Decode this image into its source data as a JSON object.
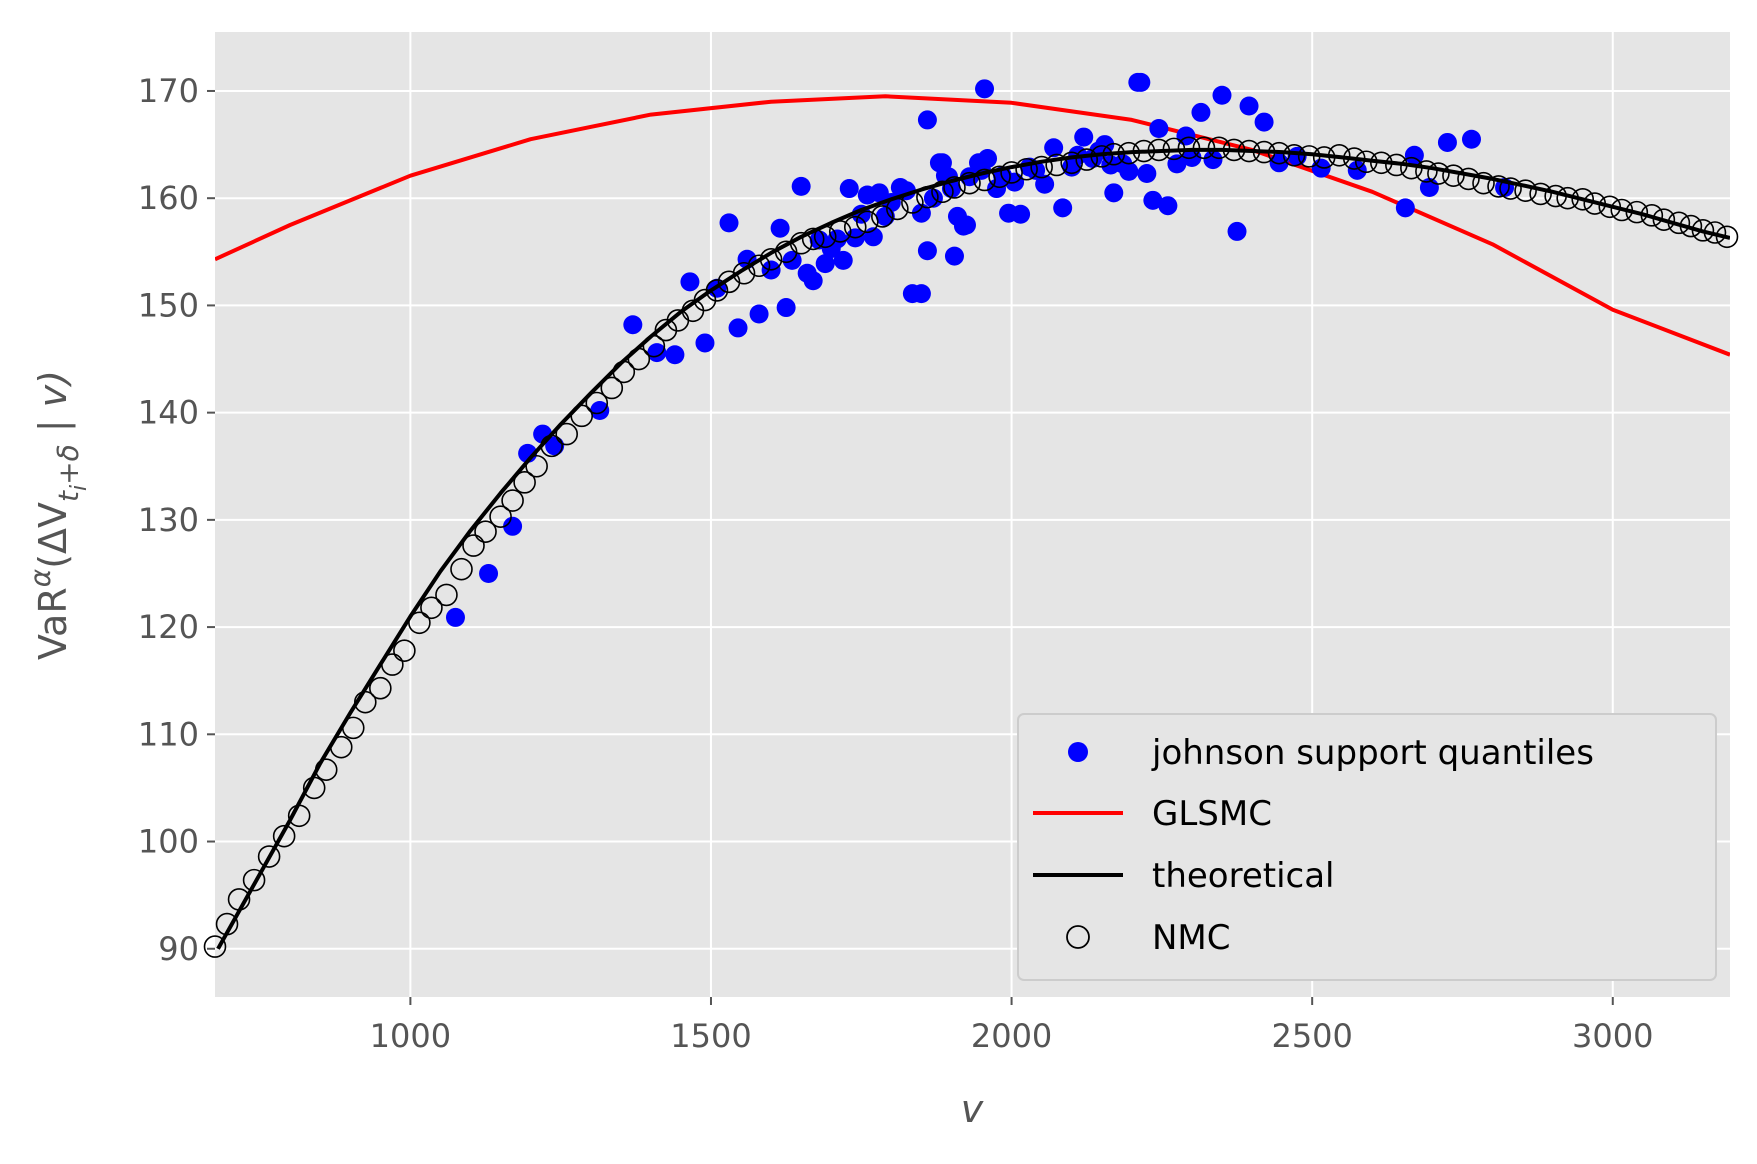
{
  "chart_data": {
    "type": "scatter",
    "xlabel": "v",
    "ylabel_parts": {
      "base": "VaR",
      "sup": "α",
      "open": "(ΔV",
      "sub": "t",
      "subsub": "i",
      "subrest": "+δ",
      "close": " | v)"
    },
    "xlim": [
      675,
      3195
    ],
    "ylim": [
      85.5,
      175.5
    ],
    "xticks": [
      1000,
      1500,
      2000,
      2500,
      3000
    ],
    "yticks": [
      90,
      100,
      110,
      120,
      130,
      140,
      150,
      160,
      170
    ],
    "xtick_labels": [
      "1000",
      "1500",
      "2000",
      "2500",
      "3000"
    ],
    "ytick_labels": [
      "90",
      "100",
      "110",
      "120",
      "130",
      "140",
      "150",
      "160",
      "170"
    ],
    "grid": true,
    "legend_position": "lower right",
    "colors": {
      "background": "#e5e5e5",
      "grid": "#ffffff",
      "johnson": "#0000ff",
      "glsmc": "#ff0000",
      "theoretical": "#000000",
      "nmc_edge": "#000000"
    },
    "legend": [
      {
        "key": "johnson",
        "label": "johnson support quantiles",
        "kind": "dot"
      },
      {
        "key": "glsmc",
        "label": "GLSMC",
        "kind": "line"
      },
      {
        "key": "theoretical",
        "label": "theoretical",
        "kind": "line"
      },
      {
        "key": "nmc",
        "label": "NMC",
        "kind": "circle"
      }
    ],
    "series": [
      {
        "key": "glsmc",
        "name": "GLSMC",
        "kind": "line",
        "x": [
          675,
          800,
          1000,
          1200,
          1400,
          1600,
          1790,
          2000,
          2200,
          2400,
          2600,
          2800,
          3000,
          3195
        ],
        "y": [
          154.3,
          157.5,
          162.1,
          165.5,
          167.8,
          169.0,
          169.5,
          168.9,
          167.3,
          164.5,
          160.6,
          155.7,
          149.6,
          145.4
        ]
      },
      {
        "key": "theoretical",
        "name": "theoretical",
        "kind": "line",
        "x": [
          680,
          750,
          800,
          850,
          900,
          950,
          1000,
          1050,
          1100,
          1150,
          1200,
          1250,
          1300,
          1350,
          1400,
          1450,
          1500,
          1550,
          1600,
          1650,
          1700,
          1750,
          1800,
          1850,
          1900,
          1950,
          2000,
          2050,
          2100,
          2150,
          2200,
          2250,
          2300,
          2350,
          2400,
          2450,
          2500,
          2550,
          2600,
          2650,
          2700,
          2750,
          2800,
          2850,
          2900,
          2950,
          3000,
          3050,
          3100,
          3150,
          3195
        ],
        "y": [
          90.0,
          97.0,
          102.0,
          107.3,
          112.0,
          116.5,
          121.0,
          125.2,
          129.0,
          132.5,
          135.8,
          138.9,
          141.8,
          144.6,
          147.1,
          149.4,
          151.4,
          153.2,
          154.9,
          156.4,
          157.7,
          158.9,
          159.9,
          160.8,
          161.6,
          162.3,
          162.9,
          163.4,
          163.8,
          164.1,
          164.3,
          164.4,
          164.5,
          164.5,
          164.4,
          164.3,
          164.1,
          163.8,
          163.5,
          163.2,
          162.8,
          162.3,
          161.8,
          161.2,
          160.6,
          159.9,
          159.2,
          158.5,
          157.7,
          156.9,
          156.3
        ]
      },
      {
        "key": "nmc",
        "name": "NMC",
        "kind": "circle",
        "x": [
          675,
          695,
          715,
          740,
          765,
          790,
          815,
          840,
          860,
          885,
          905,
          925,
          950,
          970,
          990,
          1015,
          1035,
          1060,
          1085,
          1105,
          1125,
          1150,
          1170,
          1190,
          1210,
          1235,
          1260,
          1285,
          1310,
          1335,
          1355,
          1380,
          1405,
          1425,
          1445,
          1470,
          1490,
          1510,
          1530,
          1555,
          1580,
          1600,
          1625,
          1650,
          1670,
          1690,
          1715,
          1740,
          1760,
          1785,
          1810,
          1835,
          1860,
          1885,
          1905,
          1930,
          1955,
          1980,
          2000,
          2025,
          2050,
          2075,
          2100,
          2125,
          2150,
          2170,
          2195,
          2220,
          2245,
          2270,
          2295,
          2320,
          2345,
          2370,
          2395,
          2420,
          2445,
          2470,
          2495,
          2520,
          2545,
          2570,
          2590,
          2615,
          2640,
          2665,
          2690,
          2710,
          2735,
          2760,
          2785,
          2810,
          2830,
          2855,
          2880,
          2905,
          2925,
          2950,
          2970,
          2995,
          3015,
          3040,
          3065,
          3085,
          3110,
          3130,
          3150,
          3170,
          3190
        ],
        "y": [
          90.2,
          92.3,
          94.6,
          96.4,
          98.6,
          100.5,
          102.4,
          105.0,
          106.7,
          108.8,
          110.6,
          113.0,
          114.3,
          116.5,
          117.8,
          120.4,
          121.8,
          123.0,
          125.4,
          127.6,
          128.9,
          130.3,
          131.8,
          133.5,
          135.0,
          136.9,
          138.0,
          139.7,
          140.9,
          142.3,
          143.8,
          145.0,
          146.2,
          147.7,
          148.6,
          149.5,
          150.5,
          151.4,
          152.2,
          153.0,
          153.7,
          154.3,
          155.0,
          155.8,
          156.2,
          156.4,
          156.9,
          157.3,
          157.8,
          158.3,
          159.0,
          159.6,
          160.1,
          160.6,
          161.0,
          161.4,
          161.7,
          162.0,
          162.4,
          162.7,
          162.9,
          163.1,
          163.3,
          163.6,
          163.9,
          164.1,
          164.2,
          164.4,
          164.5,
          164.6,
          164.7,
          164.7,
          164.7,
          164.5,
          164.4,
          164.3,
          164.2,
          164.0,
          163.9,
          163.8,
          164.0,
          163.7,
          163.4,
          163.3,
          163.1,
          162.8,
          162.5,
          162.3,
          162.1,
          161.8,
          161.4,
          161.1,
          160.9,
          160.7,
          160.4,
          160.2,
          160.0,
          159.9,
          159.5,
          159.2,
          158.9,
          158.7,
          158.4,
          158.0,
          157.7,
          157.4,
          157.0,
          156.8,
          156.4
        ]
      },
      {
        "key": "johnson",
        "name": "johnson support quantiles",
        "kind": "dot",
        "x": [
          1075,
          1130,
          1170,
          1195,
          1220,
          1240,
          1315,
          1370,
          1410,
          1440,
          1465,
          1490,
          1510,
          1530,
          1545,
          1560,
          1580,
          1600,
          1615,
          1625,
          1635,
          1650,
          1660,
          1670,
          1680,
          1690,
          1700,
          1710,
          1720,
          1730,
          1740,
          1750,
          1760,
          1770,
          1780,
          1790,
          1800,
          1815,
          1825,
          1835,
          1850,
          1860,
          1870,
          1880,
          1890,
          1900,
          1910,
          1920,
          1930,
          1945,
          1950,
          1960,
          1975,
          1985,
          1995,
          2005,
          2015,
          2030,
          2040,
          2055,
          2070,
          2085,
          2100,
          2110,
          2120,
          2135,
          2145,
          2155,
          2165,
          2170,
          2185,
          2195,
          2215,
          2225,
          2235,
          2245,
          2260,
          2275,
          2290,
          2300,
          2315,
          2335,
          2350,
          2375,
          2395,
          2420,
          2445,
          2475,
          2515,
          2575,
          2655,
          2670,
          2695,
          2725,
          2765,
          2820,
          1955,
          2210,
          1860,
          1850,
          1905,
          1885,
          1895,
          1925
        ],
        "y": [
          120.9,
          125.0,
          129.4,
          136.2,
          138.0,
          136.9,
          140.2,
          148.2,
          145.6,
          145.4,
          152.2,
          146.5,
          151.6,
          157.7,
          147.9,
          154.3,
          149.2,
          153.3,
          157.2,
          149.8,
          154.2,
          161.1,
          153.0,
          152.3,
          156.1,
          153.9,
          155.3,
          156.2,
          154.2,
          160.9,
          156.3,
          158.5,
          160.3,
          156.4,
          160.5,
          158.3,
          159.6,
          161.0,
          160.7,
          151.1,
          158.6,
          155.1,
          160.0,
          163.3,
          162.1,
          160.9,
          158.3,
          157.4,
          162.0,
          163.3,
          162.6,
          163.7,
          160.9,
          162.1,
          158.6,
          161.5,
          158.5,
          162.9,
          162.6,
          161.3,
          164.7,
          159.1,
          162.9,
          164.0,
          165.7,
          163.7,
          164.4,
          165.0,
          163.1,
          160.5,
          163.2,
          162.5,
          170.8,
          162.3,
          159.8,
          166.5,
          159.3,
          163.2,
          165.8,
          163.8,
          168.0,
          163.6,
          169.6,
          156.9,
          168.6,
          167.1,
          163.3,
          163.9,
          162.8,
          162.6,
          159.1,
          164.0,
          161.0,
          165.2,
          165.5,
          161.0,
          170.2,
          170.8,
          167.3,
          151.1,
          154.6,
          163.3,
          162.0,
          157.5
        ]
      }
    ]
  }
}
